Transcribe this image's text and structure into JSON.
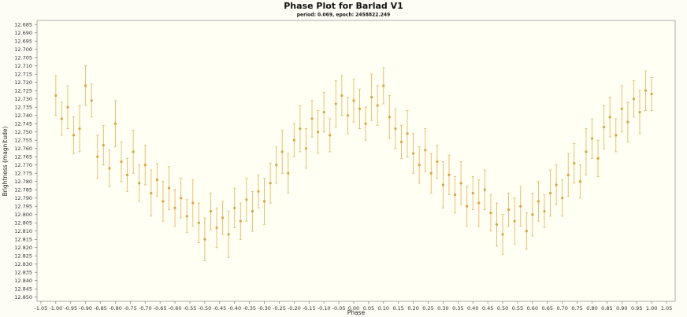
{
  "chart_data": {
    "type": "errorbar-scatter",
    "title": "Phase Plot for Barlad V1",
    "subtitle": "period: 0.069, epoch: 2458822.249",
    "xlabel": "Phase",
    "ylabel": "Brightness (magnitude)",
    "color": "#d9a441",
    "error_color": "#e6b96a",
    "y_inverted": true,
    "grid": false,
    "xlim": [
      -1.063,
      1.079
    ],
    "ylim": [
      12.6825,
      12.8525
    ],
    "xticks": [
      -1.05,
      {
        "value": -1,
        "label": "-1.00"
      },
      -0.95,
      {
        "value": -0.9,
        "label": "-0.90"
      },
      -0.85,
      {
        "value": -0.8,
        "label": "-0.80"
      },
      -0.75,
      {
        "value": -0.7,
        "label": "-0.70"
      },
      -0.65,
      {
        "value": -0.6,
        "label": "-0.60"
      },
      -0.55,
      {
        "value": -0.5,
        "label": "-0.50"
      },
      -0.45,
      {
        "value": -0.4,
        "label": "-0.40"
      },
      -0.35,
      {
        "value": -0.3,
        "label": "-0.30"
      },
      -0.25,
      {
        "value": -0.2,
        "label": "-0.20"
      },
      -0.15,
      {
        "value": -0.1,
        "label": "-0.10"
      },
      -0.05,
      {
        "value": 0,
        "label": "0.00"
      },
      0.05,
      {
        "value": 0.1,
        "label": "0.10"
      },
      0.15,
      {
        "value": 0.2,
        "label": "0.20"
      },
      0.25,
      {
        "value": 0.3,
        "label": "0.30"
      },
      0.35,
      {
        "value": 0.4,
        "label": "0.40"
      },
      0.45,
      {
        "value": 0.5,
        "label": "0.50"
      },
      0.55,
      {
        "value": 0.6,
        "label": "0.60"
      },
      0.65,
      {
        "value": 0.7,
        "label": "0.70"
      },
      0.75,
      {
        "value": 0.8,
        "label": "0.80"
      },
      0.85,
      {
        "value": 0.9,
        "label": "0.90"
      },
      0.95,
      {
        "value": 1,
        "label": "1.00"
      },
      1.05
    ],
    "yticks": [
      12.685,
      {
        "value": 12.69,
        "label": "12.690"
      },
      12.695,
      {
        "value": 12.7,
        "label": "12.700"
      },
      12.705,
      {
        "value": 12.71,
        "label": "12.710"
      },
      12.715,
      {
        "value": 12.72,
        "label": "12.720"
      },
      12.725,
      {
        "value": 12.73,
        "label": "12.730"
      },
      12.735,
      {
        "value": 12.74,
        "label": "12.740"
      },
      12.745,
      {
        "value": 12.75,
        "label": "12.750"
      },
      12.755,
      {
        "value": 12.76,
        "label": "12.760"
      },
      12.765,
      {
        "value": 12.77,
        "label": "12.770"
      },
      12.775,
      {
        "value": 12.78,
        "label": "12.780"
      },
      12.785,
      {
        "value": 12.79,
        "label": "12.790"
      },
      12.795,
      {
        "value": 12.8,
        "label": "12.800"
      },
      12.805,
      {
        "value": 12.81,
        "label": "12.810"
      },
      12.815,
      {
        "value": 12.82,
        "label": "12.820"
      },
      12.825,
      {
        "value": 12.83,
        "label": "12.830"
      },
      12.835,
      {
        "value": 12.84,
        "label": "12.840"
      },
      12.845,
      {
        "value": 12.85,
        "label": "12.850"
      }
    ],
    "x": [
      -1,
      -0.98,
      -0.96,
      -0.94,
      -0.92,
      -0.9,
      -0.88,
      -0.86,
      -0.84,
      -0.82,
      -0.8,
      -0.78,
      -0.76,
      -0.74,
      -0.72,
      -0.7,
      -0.68,
      -0.66,
      -0.64,
      -0.62,
      -0.6,
      -0.58,
      -0.56,
      -0.54,
      -0.52,
      -0.5,
      -0.48,
      -0.46,
      -0.44,
      -0.42,
      -0.4,
      -0.38,
      -0.36,
      -0.34,
      -0.32,
      -0.3,
      -0.28,
      -0.26,
      -0.24,
      -0.22,
      -0.2,
      -0.18,
      -0.16,
      -0.14,
      -0.12,
      -0.1,
      -0.08,
      -0.06,
      -0.04,
      -0.02,
      0,
      0.02,
      0.04,
      0.06,
      0.08,
      0.1,
      0.12,
      0.14,
      0.16,
      0.18,
      0.2,
      0.22,
      0.24,
      0.26,
      0.28,
      0.3,
      0.32,
      0.34,
      0.36,
      0.38,
      0.4,
      0.42,
      0.44,
      0.46,
      0.48,
      0.5,
      0.52,
      0.54,
      0.56,
      0.58,
      0.6,
      0.62,
      0.64,
      0.66,
      0.68,
      0.7,
      0.72,
      0.74,
      0.76,
      0.78,
      0.8,
      0.82,
      0.84,
      0.86,
      0.88,
      0.9,
      0.92,
      0.94,
      0.96,
      0.98,
      1
    ],
    "values": [
      12.728,
      12.742,
      12.735,
      12.752,
      12.748,
      12.722,
      12.731,
      12.765,
      12.758,
      12.772,
      12.745,
      12.768,
      12.776,
      12.762,
      12.781,
      12.77,
      12.787,
      12.779,
      12.792,
      12.784,
      12.796,
      12.79,
      12.801,
      12.793,
      12.805,
      12.815,
      12.798,
      12.808,
      12.802,
      12.812,
      12.796,
      12.804,
      12.791,
      12.798,
      12.786,
      12.792,
      12.781,
      12.77,
      12.762,
      12.775,
      12.755,
      12.748,
      12.76,
      12.742,
      12.75,
      12.738,
      12.752,
      12.733,
      12.728,
      12.74,
      12.731,
      12.736,
      12.745,
      12.729,
      12.734,
      12.722,
      12.741,
      12.748,
      12.756,
      12.751,
      12.763,
      12.77,
      12.761,
      12.775,
      12.768,
      12.782,
      12.776,
      12.788,
      12.781,
      12.795,
      12.787,
      12.793,
      12.785,
      12.799,
      12.806,
      12.812,
      12.797,
      12.804,
      12.795,
      12.81,
      12.8,
      12.792,
      12.798,
      12.787,
      12.782,
      12.79,
      12.776,
      12.769,
      12.78,
      12.762,
      12.754,
      12.766,
      12.747,
      12.741,
      12.752,
      12.736,
      12.744,
      12.73,
      12.738,
      12.725,
      12.727
    ],
    "errors": [
      0.012,
      0.01,
      0.013,
      0.011,
      0.014,
      0.012,
      0.01,
      0.013,
      0.012,
      0.011,
      0.014,
      0.012,
      0.01,
      0.013,
      0.011,
      0.012,
      0.014,
      0.01,
      0.012,
      0.013,
      0.011,
      0.012,
      0.01,
      0.014,
      0.012,
      0.013,
      0.011,
      0.012,
      0.01,
      0.014,
      0.012,
      0.011,
      0.013,
      0.012,
      0.01,
      0.014,
      0.012,
      0.011,
      0.013,
      0.012,
      0.01,
      0.014,
      0.012,
      0.011,
      0.013,
      0.012,
      0.01,
      0.014,
      0.012,
      0.011,
      0.013,
      0.012,
      0.01,
      0.014,
      0.012,
      0.011,
      0.013,
      0.012,
      0.01,
      0.014,
      0.012,
      0.011,
      0.013,
      0.012,
      0.01,
      0.014,
      0.012,
      0.011,
      0.013,
      0.012,
      0.01,
      0.014,
      0.012,
      0.011,
      0.013,
      0.012,
      0.01,
      0.014,
      0.012,
      0.011,
      0.013,
      0.012,
      0.01,
      0.014,
      0.012,
      0.011,
      0.013,
      0.012,
      0.01,
      0.014,
      0.012,
      0.011,
      0.013,
      0.012,
      0.01,
      0.014,
      0.012,
      0.011,
      0.013,
      0.012,
      0.01
    ]
  }
}
